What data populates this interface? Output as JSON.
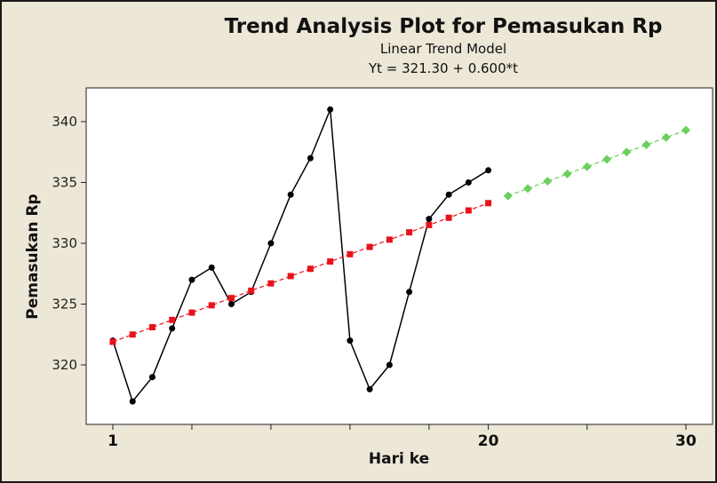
{
  "chart_data": {
    "type": "line",
    "title": "Trend Analysis Plot for Pemasukan Rp",
    "subtitle": "Linear Trend Model",
    "equation": "Yt = 321.30 + 0.600*t",
    "xlabel": "Hari ke",
    "ylabel": "Pemasukan Rp",
    "xlim": [
      1,
      30
    ],
    "ylim": [
      316,
      342
    ],
    "x_tick_labels": [
      {
        "x": 1,
        "label": "1"
      },
      {
        "x": 20,
        "label": "20"
      },
      {
        "x": 30,
        "label": "30"
      }
    ],
    "x_minor_ticks": [
      5,
      9,
      13,
      17,
      25
    ],
    "y_ticks": [
      320,
      325,
      330,
      335,
      340
    ],
    "grid": false,
    "series": [
      {
        "color": "#000000",
        "marker": "circle",
        "line": "solid",
        "x": [
          1,
          2,
          3,
          4,
          5,
          6,
          7,
          8,
          9,
          10,
          11,
          12,
          13,
          14,
          15,
          16,
          17,
          18,
          19,
          20
        ],
        "values": [
          322,
          317,
          319,
          323,
          327,
          328,
          325,
          326,
          330,
          334,
          337,
          341,
          322,
          318,
          320,
          326,
          332,
          334,
          335,
          336
        ]
      },
      {
        "color": "#e8121a",
        "marker": "square",
        "line": "dashed",
        "x": [
          1,
          2,
          3,
          4,
          5,
          6,
          7,
          8,
          9,
          10,
          11,
          12,
          13,
          14,
          15,
          16,
          17,
          18,
          19,
          20
        ],
        "values": [
          321.9,
          322.5,
          323.1,
          323.7,
          324.3,
          324.9,
          325.5,
          326.1,
          326.7,
          327.3,
          327.9,
          328.5,
          329.1,
          329.7,
          330.3,
          330.9,
          331.5,
          332.1,
          332.7,
          333.3
        ]
      },
      {
        "color": "#6ccf5e",
        "marker": "diamond",
        "line": "dashed",
        "x": [
          21,
          22,
          23,
          24,
          25,
          26,
          27,
          28,
          29,
          30
        ],
        "values": [
          333.9,
          334.5,
          335.1,
          335.7,
          336.3,
          336.9,
          337.5,
          338.1,
          338.7,
          339.3
        ]
      }
    ]
  }
}
